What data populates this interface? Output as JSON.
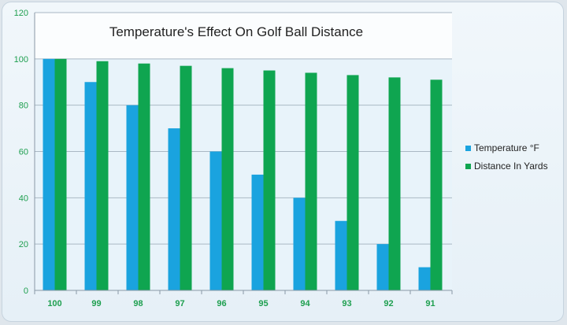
{
  "chart_data": {
    "type": "bar",
    "title": "Temperature's Effect On Golf Ball Distance",
    "categories": [
      "100",
      "99",
      "98",
      "97",
      "96",
      "95",
      "94",
      "93",
      "92",
      "91"
    ],
    "series": [
      {
        "name": "Temperature °F",
        "color": "#1aa3df",
        "values": [
          100,
          90,
          80,
          70,
          60,
          50,
          40,
          30,
          20,
          10
        ]
      },
      {
        "name": "Distance In Yards",
        "color": "#0fa550",
        "values": [
          100,
          99,
          98,
          97,
          96,
          95,
          94,
          93,
          92,
          91
        ]
      }
    ],
    "xlabel": "",
    "ylabel": "",
    "ylim": [
      0,
      120
    ],
    "yticks": [
      0,
      20,
      40,
      60,
      80,
      100,
      120
    ],
    "grid": true,
    "legend_position": "right",
    "tick_color": "#1e9f4f"
  }
}
